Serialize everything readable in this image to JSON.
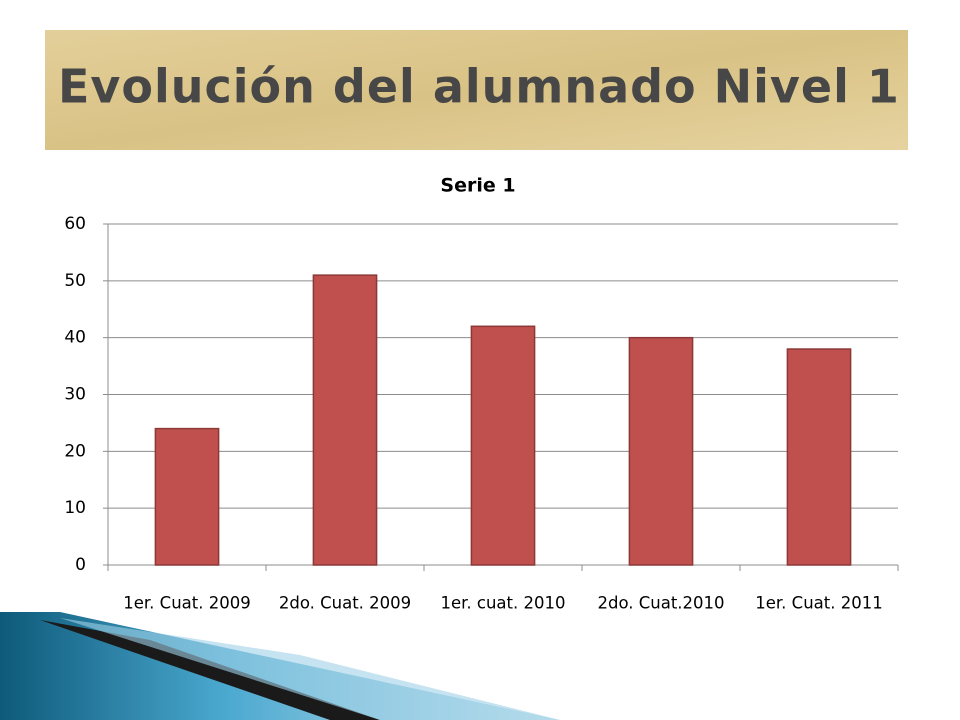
{
  "slide": {
    "title": "Evolución del alumnado Nivel 1"
  },
  "chart_data": {
    "type": "bar",
    "title": "Serie 1",
    "categories": [
      "1er. Cuat. 2009",
      "2do. Cuat. 2009",
      "1er. cuat. 2010",
      "2do. Cuat.2010",
      "1er. Cuat. 2011"
    ],
    "values": [
      24,
      51,
      42,
      40,
      38
    ],
    "color": "#c0504d",
    "ylim": [
      0,
      60
    ],
    "yticks": [
      0,
      10,
      20,
      30,
      40,
      50,
      60
    ],
    "grid": true
  }
}
